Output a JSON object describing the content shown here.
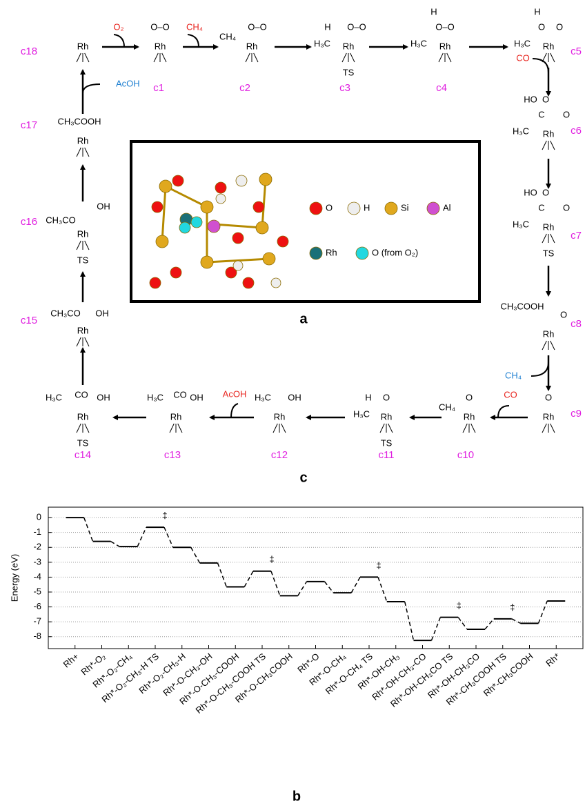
{
  "scheme": {
    "panel_label": "c",
    "nodes": [
      {
        "label": "c1",
        "parts": [
          "Rh",
          "O‒O"
        ]
      },
      {
        "label": "c2",
        "parts": [
          "Rh",
          "CH₄",
          "O‒O"
        ]
      },
      {
        "label": "c3",
        "parts": [
          "Rh",
          "H",
          "O‒O",
          "H₃C",
          "TS"
        ]
      },
      {
        "label": "c4",
        "parts": [
          "Rh",
          "H",
          "O‒O",
          "H₃C"
        ]
      },
      {
        "label": "c5",
        "parts": [
          "Rh",
          "H",
          "O",
          "O",
          "H₃C"
        ]
      },
      {
        "label": "c6",
        "parts": [
          "Rh",
          "HO",
          "O",
          "C",
          "O",
          "H₃C"
        ]
      },
      {
        "label": "c7",
        "parts": [
          "Rh",
          "HO",
          "O",
          "C",
          "O",
          "H₃C",
          "TS"
        ]
      },
      {
        "label": "c8",
        "parts": [
          "Rh",
          "CH₃COOH",
          "O"
        ]
      },
      {
        "label": "c9",
        "parts": [
          "Rh",
          "O"
        ]
      },
      {
        "label": "c10",
        "parts": [
          "Rh",
          "CH₄",
          "O"
        ]
      },
      {
        "label": "c11",
        "parts": [
          "Rh",
          "H",
          "O",
          "H₃C",
          "TS"
        ]
      },
      {
        "label": "c12",
        "parts": [
          "Rh",
          "H₃C",
          "OH"
        ]
      },
      {
        "label": "c13",
        "parts": [
          "Rh",
          "H₃C",
          "CO",
          "OH"
        ]
      },
      {
        "label": "c14",
        "parts": [
          "Rh",
          "H₃C",
          "CO",
          "OH",
          "TS"
        ]
      },
      {
        "label": "c15",
        "parts": [
          "Rh",
          "CH₃CO",
          "OH"
        ]
      },
      {
        "label": "c16",
        "parts": [
          "Rh",
          "CH₃CO",
          "OH",
          "TS"
        ]
      },
      {
        "label": "c17",
        "parts": [
          "Rh",
          "CH₃COOH"
        ]
      },
      {
        "label": "c18",
        "parts": [
          "Rh"
        ]
      }
    ],
    "reagents": [
      "O₂",
      "CH₄",
      "CO",
      "AcOH",
      "CH₄",
      "CO",
      "AcOH"
    ],
    "inset": {
      "panel_label": "a",
      "legend": [
        "O",
        "H",
        "Si",
        "Al",
        "Rh",
        "O (from O₂)"
      ]
    }
  },
  "chart_data": {
    "type": "energy_profile",
    "panel_label": "b",
    "y_label": "Energy (eV)",
    "categories": [
      "Rh+",
      "Rh*-O₂",
      "Rh*-O₂-CH₄",
      "Rh*-O₂-CH₃-H TS",
      "Rh*-O₂-CH₃-H",
      "Rh*-O-CH₃-OH",
      "Rh*-O-CH₃-COOH",
      "Rh*-O-CH₃-COOH TS",
      "Rh*-O-CH₃COOH",
      "Rh*-O",
      "Rh*-O-CH₄",
      "Rh*-O-CH₄ TS",
      "Rh*-OH-CH₃",
      "Rh*-OH-CH₃-CO",
      "Rh*-OH-CH₃CO TS",
      "Rh*-OH-CH₃CO",
      "Rh*-CH₃COOH TS",
      "Rh*-CH₃COOH",
      "Rh*"
    ],
    "values": [
      0,
      -1.6,
      -1.95,
      -0.65,
      -2.0,
      -3.05,
      -4.65,
      -3.6,
      -5.25,
      -4.3,
      -5.05,
      -4.0,
      -5.65,
      -8.25,
      -6.7,
      -7.5,
      -6.8,
      -7.1,
      -5.6
    ],
    "ylim": [
      -8.8,
      0.7
    ],
    "yticks": [
      0,
      -1,
      -2,
      -3,
      -4,
      -5,
      -6,
      -7,
      -8
    ],
    "grid": true,
    "annotations": [
      {
        "text": "‡",
        "x": "Rh*-O₂-CH₃-H TS"
      },
      {
        "text": "‡",
        "x": "Rh*-O-CH₃-COOH TS"
      },
      {
        "text": "‡",
        "x": "Rh*-O-CH₄ TS"
      },
      {
        "text": "‡",
        "x": "Rh*-OH-CH₃CO TS"
      },
      {
        "text": "‡",
        "x": "Rh*-CH₃COOH TS"
      }
    ]
  }
}
